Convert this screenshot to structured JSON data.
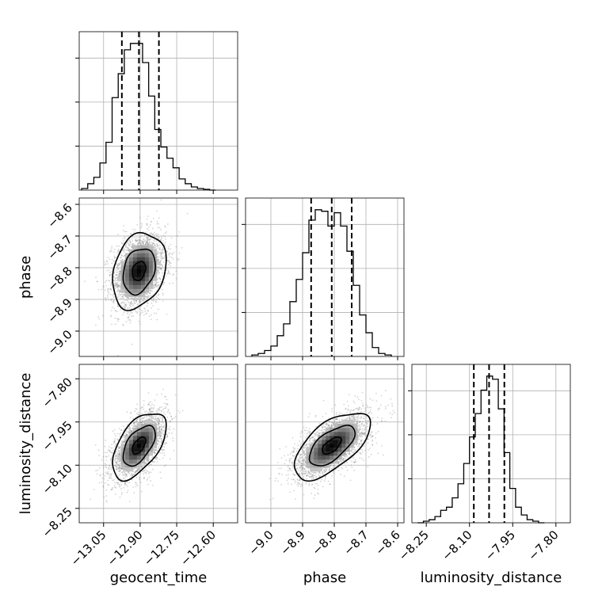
{
  "chart_data": {
    "type": "corner",
    "grid": true,
    "parameters": [
      "geocent_time",
      "phase",
      "luminosity_distance"
    ],
    "panels": {
      "geocent_time": {
        "range": [
          -13.15,
          -12.5
        ],
        "ticks": [
          "−13.05",
          "−12.90",
          "−12.75",
          "−12.60"
        ],
        "tick_values": [
          -13.05,
          -12.9,
          -12.75,
          -12.6
        ],
        "quantiles": [
          -12.975,
          -12.905,
          -12.823
        ],
        "hist_bins": [
          -13.14,
          -13.115,
          -13.09,
          -13.065,
          -13.04,
          -13.015,
          -12.99,
          -12.965,
          -12.94,
          -12.915,
          -12.89,
          -12.865,
          -12.84,
          -12.815,
          -12.79,
          -12.765,
          -12.74,
          -12.715,
          -12.69,
          -12.665,
          -12.64,
          -12.615
        ],
        "hist_counts": [
          0.01,
          0.04,
          0.08,
          0.17,
          0.3,
          0.58,
          0.73,
          0.88,
          0.92,
          0.92,
          0.8,
          0.59,
          0.38,
          0.27,
          0.2,
          0.14,
          0.07,
          0.04,
          0.02,
          0.01,
          0.005,
          0.0
        ]
      },
      "phase": {
        "range": [
          -9.08,
          -8.58
        ],
        "ticks": [
          "−9.0",
          "−8.9",
          "−8.8",
          "−8.7",
          "−8.6"
        ],
        "tick_values": [
          -9.0,
          -8.9,
          -8.8,
          -8.7,
          -8.6
        ],
        "quantiles": [
          -8.873,
          -8.808,
          -8.745
        ],
        "hist_bins": [
          -9.06,
          -9.04,
          -9.02,
          -9.0,
          -8.98,
          -8.96,
          -8.94,
          -8.92,
          -8.9,
          -8.88,
          -8.86,
          -8.84,
          -8.82,
          -8.8,
          -8.78,
          -8.76,
          -8.74,
          -8.72,
          -8.7,
          -8.68,
          -8.66,
          -8.64
        ],
        "hist_counts": [
          0.01,
          0.02,
          0.04,
          0.07,
          0.14,
          0.22,
          0.37,
          0.52,
          0.7,
          0.92,
          0.99,
          0.98,
          0.88,
          0.97,
          0.88,
          0.71,
          0.48,
          0.28,
          0.16,
          0.06,
          0.02,
          0.01
        ]
      },
      "luminosity_distance": {
        "range": [
          -8.3,
          -7.75
        ],
        "ticks": [
          "−8.25",
          "−8.10",
          "−7.95",
          "−7.80"
        ],
        "tick_values": [
          -8.25,
          -8.1,
          -7.95,
          -7.8
        ],
        "quantiles": [
          -8.085,
          -8.032,
          -7.979
        ],
        "hist_bins": [
          -8.28,
          -8.26,
          -8.24,
          -8.22,
          -8.2,
          -8.18,
          -8.16,
          -8.14,
          -8.12,
          -8.1,
          -8.08,
          -8.06,
          -8.04,
          -8.02,
          -8.0,
          -7.98,
          -7.96,
          -7.94,
          -7.92,
          -7.9,
          -7.88,
          -7.86
        ],
        "hist_counts": [
          0.0,
          0.01,
          0.02,
          0.04,
          0.08,
          0.1,
          0.16,
          0.25,
          0.38,
          0.55,
          0.7,
          0.85,
          0.94,
          0.92,
          0.73,
          0.45,
          0.22,
          0.1,
          0.05,
          0.02,
          0.01,
          0.0
        ]
      }
    },
    "pairs": [
      {
        "x": "geocent_time",
        "y": "phase",
        "center": [
          -12.905,
          -8.81
        ],
        "sd": [
          0.055,
          0.06
        ],
        "corr": 0.25,
        "contour_levels": [
          0.5,
          1.2,
          2.0
        ]
      },
      {
        "x": "geocent_time",
        "y": "luminosity_distance",
        "center": [
          -12.905,
          -8.032
        ],
        "sd": [
          0.055,
          0.058
        ],
        "corr": 0.55,
        "contour_levels": [
          0.5,
          1.2,
          2.0
        ]
      },
      {
        "x": "phase",
        "y": "luminosity_distance",
        "center": [
          -8.808,
          -8.032
        ],
        "sd": [
          0.06,
          0.058
        ],
        "corr": 0.62,
        "contour_levels": [
          0.5,
          1.2,
          2.0
        ]
      }
    ],
    "xlabels": [
      "geocent_time",
      "phase",
      "luminosity_distance"
    ],
    "ylabels": [
      "",
      "phase",
      "luminosity_distance"
    ]
  }
}
